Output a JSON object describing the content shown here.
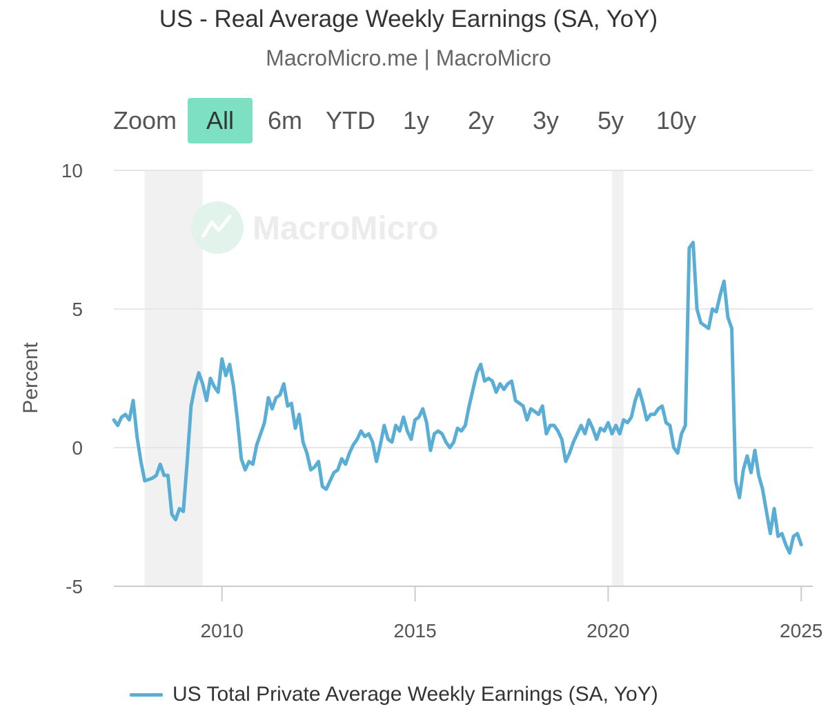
{
  "header": {
    "title": "US - Real Average Weekly Earnings (SA, YoY)",
    "subtitle": "MacroMicro.me | MacroMicro"
  },
  "range_selector": {
    "zoom_label": "Zoom",
    "buttons": [
      "All",
      "6m",
      "YTD",
      "1y",
      "2y",
      "3y",
      "5y",
      "10y"
    ],
    "active": "All"
  },
  "watermark": "MacroMicro",
  "colors": {
    "series": "#5aaed6",
    "recession_band": "#f1f1f1",
    "grid": "#e6e6e6",
    "active_button": "#7ee0c3"
  },
  "chart_data": {
    "type": "line",
    "ylabel": "Percent",
    "ylim": [
      -5,
      10
    ],
    "yticks": [
      -5,
      0,
      5,
      10
    ],
    "xlim": [
      2007.2,
      2025.3
    ],
    "xticks": [
      "2010",
      "2015",
      "2020",
      "2025"
    ],
    "grid": true,
    "legend_position": "bottom",
    "recessions": [
      [
        2008.0,
        2009.5
      ],
      [
        2020.1,
        2020.4
      ]
    ],
    "series": [
      {
        "name": "US Total Private Average Weekly Earnings (SA, YoY)",
        "points": [
          [
            2007.2,
            1.0
          ],
          [
            2007.3,
            0.8
          ],
          [
            2007.4,
            1.1
          ],
          [
            2007.5,
            1.2
          ],
          [
            2007.6,
            1.0
          ],
          [
            2007.7,
            1.7
          ],
          [
            2007.8,
            0.4
          ],
          [
            2007.9,
            -0.5
          ],
          [
            2008.0,
            -1.2
          ],
          [
            2008.2,
            -1.1
          ],
          [
            2008.3,
            -1.0
          ],
          [
            2008.4,
            -0.6
          ],
          [
            2008.5,
            -1.0
          ],
          [
            2008.6,
            -1.0
          ],
          [
            2008.7,
            -2.4
          ],
          [
            2008.8,
            -2.6
          ],
          [
            2008.9,
            -2.2
          ],
          [
            2009.0,
            -2.3
          ],
          [
            2009.1,
            -0.5
          ],
          [
            2009.2,
            1.5
          ],
          [
            2009.3,
            2.2
          ],
          [
            2009.4,
            2.7
          ],
          [
            2009.5,
            2.3
          ],
          [
            2009.6,
            1.7
          ],
          [
            2009.7,
            2.5
          ],
          [
            2009.8,
            2.2
          ],
          [
            2009.9,
            2.0
          ],
          [
            2010.0,
            3.2
          ],
          [
            2010.1,
            2.6
          ],
          [
            2010.2,
            3.0
          ],
          [
            2010.3,
            2.2
          ],
          [
            2010.4,
            1.0
          ],
          [
            2010.5,
            -0.4
          ],
          [
            2010.6,
            -0.8
          ],
          [
            2010.7,
            -0.5
          ],
          [
            2010.8,
            -0.6
          ],
          [
            2010.9,
            0.1
          ],
          [
            2011.0,
            0.5
          ],
          [
            2011.1,
            0.9
          ],
          [
            2011.2,
            1.8
          ],
          [
            2011.3,
            1.4
          ],
          [
            2011.4,
            1.8
          ],
          [
            2011.5,
            1.9
          ],
          [
            2011.6,
            2.3
          ],
          [
            2011.7,
            1.5
          ],
          [
            2011.8,
            1.6
          ],
          [
            2011.9,
            0.7
          ],
          [
            2012.0,
            1.2
          ],
          [
            2012.1,
            0.2
          ],
          [
            2012.2,
            -0.2
          ],
          [
            2012.3,
            -0.8
          ],
          [
            2012.4,
            -0.7
          ],
          [
            2012.5,
            -0.5
          ],
          [
            2012.6,
            -1.4
          ],
          [
            2012.7,
            -1.5
          ],
          [
            2012.8,
            -1.2
          ],
          [
            2012.9,
            -0.9
          ],
          [
            2013.0,
            -0.8
          ],
          [
            2013.1,
            -0.4
          ],
          [
            2013.2,
            -0.6
          ],
          [
            2013.3,
            -0.2
          ],
          [
            2013.4,
            0.1
          ],
          [
            2013.5,
            0.3
          ],
          [
            2013.6,
            0.6
          ],
          [
            2013.7,
            0.4
          ],
          [
            2013.8,
            0.5
          ],
          [
            2013.9,
            0.2
          ],
          [
            2014.0,
            -0.5
          ],
          [
            2014.1,
            0.1
          ],
          [
            2014.2,
            0.8
          ],
          [
            2014.3,
            0.3
          ],
          [
            2014.4,
            0.2
          ],
          [
            2014.5,
            0.8
          ],
          [
            2014.6,
            0.6
          ],
          [
            2014.7,
            1.1
          ],
          [
            2014.8,
            0.6
          ],
          [
            2014.9,
            0.3
          ],
          [
            2015.0,
            1.0
          ],
          [
            2015.1,
            1.1
          ],
          [
            2015.2,
            1.4
          ],
          [
            2015.3,
            0.9
          ],
          [
            2015.4,
            -0.1
          ],
          [
            2015.5,
            0.5
          ],
          [
            2015.6,
            0.6
          ],
          [
            2015.7,
            0.5
          ],
          [
            2015.8,
            0.2
          ],
          [
            2015.9,
            0.0
          ],
          [
            2016.0,
            0.2
          ],
          [
            2016.1,
            0.7
          ],
          [
            2016.2,
            0.6
          ],
          [
            2016.3,
            0.8
          ],
          [
            2016.4,
            1.5
          ],
          [
            2016.5,
            2.1
          ],
          [
            2016.6,
            2.7
          ],
          [
            2016.7,
            3.0
          ],
          [
            2016.8,
            2.4
          ],
          [
            2016.9,
            2.5
          ],
          [
            2017.0,
            2.4
          ],
          [
            2017.1,
            2.0
          ],
          [
            2017.2,
            2.3
          ],
          [
            2017.3,
            2.1
          ],
          [
            2017.4,
            2.3
          ],
          [
            2017.5,
            2.4
          ],
          [
            2017.6,
            1.7
          ],
          [
            2017.7,
            1.6
          ],
          [
            2017.8,
            1.5
          ],
          [
            2017.9,
            1.0
          ],
          [
            2018.0,
            1.4
          ],
          [
            2018.1,
            1.3
          ],
          [
            2018.2,
            1.2
          ],
          [
            2018.3,
            1.5
          ],
          [
            2018.4,
            0.5
          ],
          [
            2018.5,
            0.8
          ],
          [
            2018.6,
            0.8
          ],
          [
            2018.7,
            0.6
          ],
          [
            2018.8,
            0.3
          ],
          [
            2018.9,
            -0.5
          ],
          [
            2019.0,
            -0.2
          ],
          [
            2019.1,
            0.2
          ],
          [
            2019.2,
            0.5
          ],
          [
            2019.3,
            0.8
          ],
          [
            2019.4,
            0.5
          ],
          [
            2019.5,
            1.0
          ],
          [
            2019.6,
            0.7
          ],
          [
            2019.7,
            0.3
          ],
          [
            2019.8,
            0.7
          ],
          [
            2019.9,
            0.6
          ],
          [
            2020.0,
            0.9
          ],
          [
            2020.1,
            0.5
          ],
          [
            2020.2,
            0.8
          ],
          [
            2020.3,
            0.5
          ],
          [
            2020.4,
            1.0
          ],
          [
            2020.5,
            0.9
          ],
          [
            2020.6,
            1.1
          ],
          [
            2020.7,
            1.7
          ],
          [
            2020.8,
            2.1
          ],
          [
            2020.9,
            1.6
          ],
          [
            2021.0,
            1.0
          ],
          [
            2021.1,
            1.2
          ],
          [
            2021.2,
            1.2
          ],
          [
            2021.3,
            1.4
          ],
          [
            2021.4,
            1.5
          ],
          [
            2021.5,
            0.9
          ],
          [
            2021.6,
            0.8
          ],
          [
            2021.7,
            0.0
          ],
          [
            2021.8,
            -0.2
          ],
          [
            2021.9,
            0.5
          ],
          [
            2022.0,
            0.8
          ],
          [
            2022.1,
            7.2
          ],
          [
            2022.2,
            7.4
          ],
          [
            2022.3,
            5.0
          ],
          [
            2022.4,
            4.5
          ],
          [
            2022.5,
            4.4
          ],
          [
            2022.6,
            4.3
          ],
          [
            2022.7,
            5.0
          ],
          [
            2022.8,
            4.9
          ],
          [
            2022.9,
            5.5
          ],
          [
            2023.0,
            6.0
          ],
          [
            2023.1,
            4.7
          ],
          [
            2023.2,
            4.3
          ],
          [
            2023.3,
            -1.2
          ],
          [
            2023.4,
            -1.8
          ],
          [
            2023.5,
            -0.8
          ],
          [
            2023.6,
            -0.3
          ],
          [
            2023.7,
            -0.9
          ],
          [
            2023.8,
            -0.1
          ],
          [
            2023.9,
            -1.0
          ],
          [
            2024.0,
            -1.5
          ],
          [
            2024.1,
            -2.3
          ],
          [
            2024.2,
            -3.1
          ],
          [
            2024.3,
            -2.2
          ],
          [
            2024.4,
            -3.2
          ],
          [
            2024.5,
            -3.1
          ],
          [
            2024.6,
            -3.5
          ],
          [
            2024.7,
            -3.8
          ],
          [
            2024.8,
            -3.2
          ],
          [
            2024.9,
            -3.1
          ],
          [
            2025.0,
            -3.5
          ]
        ]
      }
    ]
  }
}
